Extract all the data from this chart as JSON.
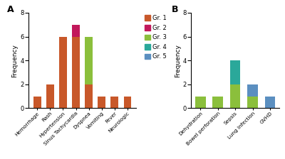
{
  "panel_A": {
    "categories": [
      "Hemorrhage",
      "Rash",
      "Hypertension",
      "Sinus Tachycardia",
      "Dyspnea",
      "Vomiting",
      "Fever",
      "Neurologic"
    ],
    "stacks": {
      "Gr. 1": [
        1,
        2,
        6,
        6,
        2,
        1,
        1,
        1
      ],
      "Gr. 2": [
        0,
        0,
        0,
        1,
        0,
        0,
        0,
        0
      ],
      "Gr. 3": [
        0,
        0,
        0,
        0,
        4,
        0,
        0,
        0
      ],
      "Gr. 4": [
        0,
        0,
        0,
        0,
        0,
        0,
        0,
        0
      ],
      "Gr. 5": [
        0,
        0,
        0,
        0,
        0,
        0,
        0,
        0
      ]
    }
  },
  "panel_B": {
    "categories": [
      "Dehydration",
      "Bowel perforation",
      "Sepsis",
      "Lung Infection",
      "GVHD"
    ],
    "stacks": {
      "Gr. 1": [
        0,
        0,
        0,
        0,
        0
      ],
      "Gr. 2": [
        0,
        0,
        0,
        0,
        0
      ],
      "Gr. 3": [
        1,
        1,
        2,
        1,
        0
      ],
      "Gr. 4": [
        0,
        0,
        2,
        0,
        0
      ],
      "Gr. 5": [
        0,
        0,
        0,
        1,
        1
      ]
    }
  },
  "colors": {
    "Gr. 1": "#C8582A",
    "Gr. 2": "#C2185B",
    "Gr. 3": "#8BBF3C",
    "Gr. 4": "#2AA89A",
    "Gr. 5": "#5B8FC0"
  },
  "ylabel": "Frequency",
  "ylim": [
    0,
    8
  ],
  "yticks": [
    0,
    2,
    4,
    6,
    8
  ],
  "legend_grades": [
    "Gr. 1",
    "Gr. 2",
    "Gr. 3",
    "Gr. 4",
    "Gr. 5"
  ]
}
